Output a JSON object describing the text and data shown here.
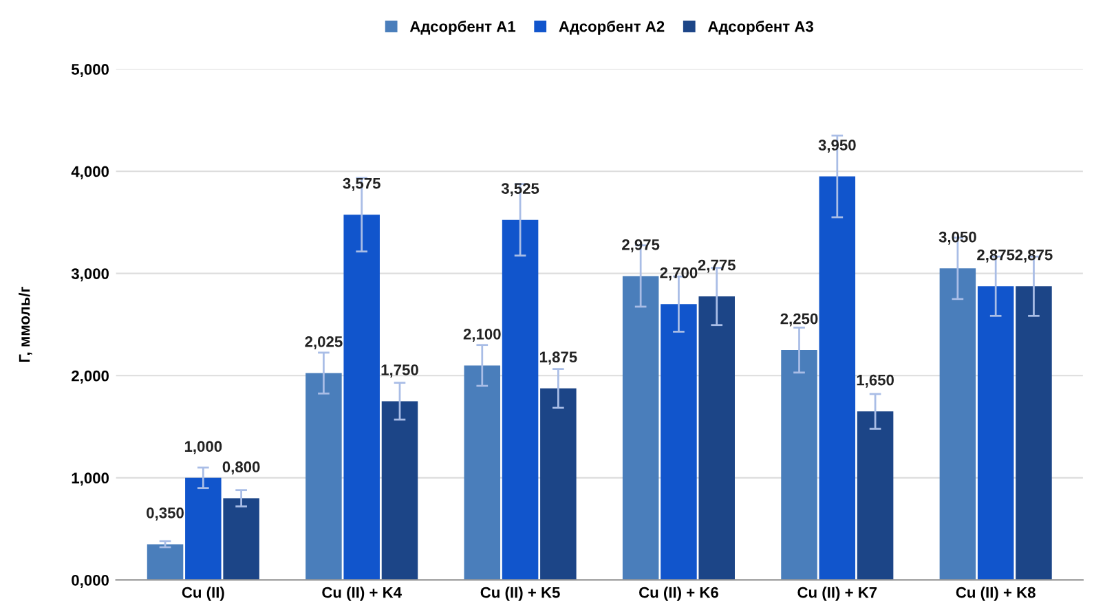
{
  "chart_data": {
    "type": "bar",
    "ylabel": "Г, ммоль/г",
    "categories": [
      "Cu (II)",
      "Cu (II) + K4",
      "Cu (II) + K5",
      "Cu (II) + K6",
      "Cu (II) + K7",
      "Cu (II) + K8"
    ],
    "series": [
      {
        "name": "Адсорбент А1",
        "color": "#4a7ebb",
        "values": [
          0.35,
          2.025,
          2.1,
          2.975,
          2.25,
          3.05
        ],
        "errors": [
          0.03,
          0.2,
          0.2,
          0.3,
          0.22,
          0.3
        ],
        "value_labels": [
          "0,350",
          "2,025",
          "2,100",
          "2,975",
          "2,250",
          "3,050"
        ]
      },
      {
        "name": "Адсорбент А2",
        "color": "#1155cc",
        "values": [
          1.0,
          3.575,
          3.525,
          2.7,
          3.95,
          2.875
        ],
        "errors": [
          0.1,
          0.36,
          0.35,
          0.27,
          0.4,
          0.29
        ],
        "value_labels": [
          "1,000",
          "3,575",
          "3,525",
          "2,700",
          "3,950",
          "2,875"
        ]
      },
      {
        "name": "Адсорбент А3",
        "color": "#1c4587",
        "values": [
          0.8,
          1.75,
          1.875,
          2.775,
          1.65,
          2.875
        ],
        "errors": [
          0.08,
          0.18,
          0.19,
          0.28,
          0.17,
          0.29
        ],
        "value_labels": [
          "0,800",
          "1,750",
          "1,875",
          "2,775",
          "1,650",
          "2,875"
        ]
      }
    ],
    "ylim": [
      0,
      5
    ],
    "yticks": [
      {
        "value": 0,
        "label": "0,000"
      },
      {
        "value": 1,
        "label": "1,000"
      },
      {
        "value": 2,
        "label": "2,000"
      },
      {
        "value": 3,
        "label": "3,000"
      },
      {
        "value": 4,
        "label": "4,000"
      },
      {
        "value": 5,
        "label": "5,000"
      }
    ],
    "grid": "y",
    "legend": "top"
  }
}
